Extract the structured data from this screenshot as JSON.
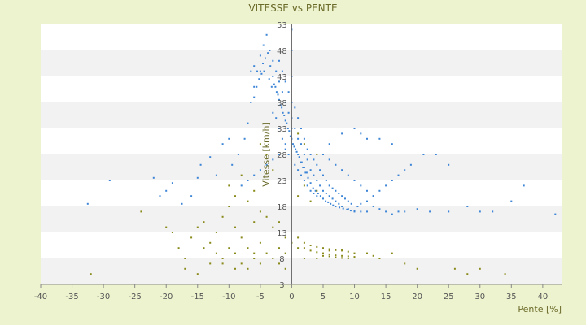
{
  "chart_data": {
    "type": "scatter",
    "title": "VITESSE vs PENTE",
    "xlabel": "Pente [%]",
    "ylabel": "Vitesse [km/h]",
    "xlim": [
      -40,
      43
    ],
    "ylim": [
      3,
      53
    ],
    "x_ticks": [
      "-40",
      "-35",
      "-30",
      "-25",
      "-20",
      "-15",
      "-10",
      "-5",
      "0",
      "5",
      "10",
      "15",
      "20",
      "25",
      "30",
      "35",
      "40"
    ],
    "y_ticks": [
      "3",
      "8",
      "13",
      "18",
      "23",
      "28",
      "33",
      "38",
      "43",
      "48",
      "53"
    ],
    "grid": true,
    "band_colors": [
      "#ffffff",
      "#f2f2f2"
    ],
    "series": [
      {
        "color": "#3d85d6",
        "points": [
          [
            -32.5,
            18.5
          ],
          [
            -29,
            23
          ],
          [
            -22,
            23.5
          ],
          [
            -21,
            20
          ],
          [
            -20,
            21
          ],
          [
            -19,
            22.5
          ],
          [
            -17.5,
            18.5
          ],
          [
            -16,
            20
          ],
          [
            -15,
            23.5
          ],
          [
            -14.5,
            26
          ],
          [
            -13,
            27.5
          ],
          [
            -12,
            24
          ],
          [
            -11,
            30
          ],
          [
            -10,
            31
          ],
          [
            -9.5,
            26
          ],
          [
            -8.5,
            28
          ],
          [
            -7.5,
            31
          ],
          [
            -7,
            34
          ],
          [
            -6.5,
            38
          ],
          [
            -6,
            41
          ],
          [
            -5.5,
            44
          ],
          [
            -5,
            47
          ],
          [
            -4.5,
            49
          ],
          [
            -4,
            51
          ],
          [
            -3.5,
            48
          ],
          [
            -3,
            46
          ],
          [
            -2.5,
            44
          ],
          [
            -2,
            42
          ],
          [
            -1.5,
            40
          ],
          [
            -1,
            38
          ],
          [
            -0.5,
            36
          ],
          [
            0,
            35
          ],
          [
            0.5,
            33
          ],
          [
            1,
            31
          ],
          [
            1.5,
            30
          ],
          [
            2,
            28
          ],
          [
            2.5,
            27
          ],
          [
            3,
            25
          ],
          [
            3.5,
            24
          ],
          [
            4,
            23
          ],
          [
            4.5,
            22
          ],
          [
            5,
            21
          ],
          [
            5.5,
            20.5
          ],
          [
            6,
            20
          ],
          [
            6.5,
            19.5
          ],
          [
            7,
            19
          ],
          [
            7.5,
            18.5
          ],
          [
            8,
            18
          ],
          [
            9,
            17.5
          ],
          [
            10,
            17
          ],
          [
            11,
            17
          ],
          [
            12,
            17
          ],
          [
            13,
            18
          ],
          [
            14,
            17.5
          ],
          [
            15,
            17
          ],
          [
            16,
            16.5
          ],
          [
            17,
            17
          ],
          [
            18,
            17
          ],
          [
            20,
            17.5
          ],
          [
            22,
            17
          ],
          [
            25,
            17
          ],
          [
            28,
            18
          ],
          [
            30,
            17
          ],
          [
            32,
            17
          ],
          [
            35,
            19
          ],
          [
            37,
            22
          ],
          [
            42,
            16.5
          ],
          [
            -5,
            44
          ],
          [
            -4.6,
            45.5
          ],
          [
            -4.2,
            46.5
          ],
          [
            -3.8,
            47.5
          ],
          [
            -3.4,
            45
          ],
          [
            -3,
            43
          ],
          [
            -2.6,
            41
          ],
          [
            -2.2,
            39.5
          ],
          [
            -1.8,
            37.5
          ],
          [
            -1.4,
            36
          ],
          [
            -1,
            34.5
          ],
          [
            -0.6,
            33
          ],
          [
            -0.2,
            31.5
          ],
          [
            0.2,
            30
          ],
          [
            0.6,
            29
          ],
          [
            1,
            28
          ],
          [
            1.4,
            26.5
          ],
          [
            1.8,
            25.5
          ],
          [
            2.2,
            24.5
          ],
          [
            2.6,
            23.5
          ],
          [
            3,
            22.5
          ],
          [
            3.4,
            21.5
          ],
          [
            3.8,
            21
          ],
          [
            4.2,
            20.5
          ],
          [
            4.6,
            20
          ],
          [
            5,
            19.5
          ],
          [
            5.4,
            19
          ],
          [
            5.8,
            18.8
          ],
          [
            6.2,
            18.5
          ],
          [
            6.6,
            18.2
          ],
          [
            7,
            18
          ],
          [
            7.6,
            17.8
          ],
          [
            8.2,
            17.6
          ],
          [
            8.8,
            17.4
          ],
          [
            9.4,
            17.2
          ],
          [
            10,
            17.1
          ],
          [
            -2.8,
            41.5
          ],
          [
            -2.4,
            40
          ],
          [
            -2,
            38.5
          ],
          [
            -1.6,
            37
          ],
          [
            -1.2,
            35.5
          ],
          [
            -0.8,
            34
          ],
          [
            -0.4,
            32.5
          ],
          [
            0,
            31
          ],
          [
            0.4,
            29.5
          ],
          [
            0.8,
            28.5
          ],
          [
            1.2,
            27.5
          ],
          [
            1.6,
            26.5
          ],
          [
            2,
            25.5
          ],
          [
            2.4,
            24.5
          ],
          [
            -6,
            39
          ],
          [
            -5.6,
            41
          ],
          [
            -5.2,
            42.5
          ],
          [
            -4.8,
            43.5
          ],
          [
            -4.4,
            44
          ],
          [
            -3.6,
            42.5
          ],
          [
            -3.2,
            41
          ],
          [
            -6.5,
            44
          ],
          [
            -6,
            45
          ],
          [
            -2,
            46
          ],
          [
            -1.5,
            44
          ],
          [
            -1,
            42
          ],
          [
            -0.5,
            40
          ],
          [
            0.5,
            37
          ],
          [
            1,
            35
          ],
          [
            1.5,
            33
          ],
          [
            2,
            31
          ],
          [
            2.5,
            29
          ],
          [
            3,
            28
          ],
          [
            3.5,
            27
          ],
          [
            4,
            26
          ],
          [
            4.5,
            25
          ],
          [
            5,
            24
          ],
          [
            5.5,
            23
          ],
          [
            6,
            22
          ],
          [
            6.5,
            21.5
          ],
          [
            7,
            21
          ],
          [
            7.5,
            20.5
          ],
          [
            8,
            20
          ],
          [
            8.5,
            19.5
          ],
          [
            9,
            19
          ],
          [
            9.5,
            18.5
          ],
          [
            10.5,
            18
          ],
          [
            11,
            18.5
          ],
          [
            12,
            19
          ],
          [
            13,
            20
          ],
          [
            14,
            21
          ],
          [
            15,
            22
          ],
          [
            16,
            23
          ],
          [
            17,
            24
          ],
          [
            18,
            25
          ],
          [
            -1,
            29
          ],
          [
            -0.5,
            28
          ],
          [
            0.5,
            26
          ],
          [
            1,
            25
          ],
          [
            1.5,
            24
          ],
          [
            2,
            23
          ],
          [
            2.5,
            22
          ],
          [
            3,
            21
          ],
          [
            3.5,
            20.5
          ],
          [
            4,
            20
          ],
          [
            -3,
            36
          ],
          [
            -2.5,
            35
          ],
          [
            -2,
            33
          ],
          [
            -1.5,
            31
          ],
          [
            -1,
            30
          ],
          [
            5,
            28
          ],
          [
            6,
            27
          ],
          [
            7,
            26
          ],
          [
            8,
            25
          ],
          [
            9,
            24
          ],
          [
            10,
            23
          ],
          [
            11,
            22
          ],
          [
            12,
            21
          ],
          [
            13,
            20
          ],
          [
            6,
            30
          ],
          [
            8,
            32
          ],
          [
            10,
            33
          ],
          [
            11,
            32
          ],
          [
            12,
            31
          ],
          [
            14,
            31
          ],
          [
            16,
            30
          ],
          [
            19,
            26
          ],
          [
            21,
            28
          ],
          [
            23,
            28
          ],
          [
            25,
            26
          ],
          [
            -8,
            22
          ],
          [
            -7,
            23
          ],
          [
            -6,
            24
          ],
          [
            -5,
            25
          ],
          [
            -4,
            26
          ],
          [
            -3,
            27
          ],
          [
            -2,
            28
          ],
          [
            0,
            33
          ],
          [
            0,
            38
          ],
          [
            0,
            43
          ],
          [
            0,
            48
          ],
          [
            0,
            52
          ]
        ]
      },
      {
        "color": "#8a8a1a",
        "points": [
          [
            -32,
            5
          ],
          [
            -24,
            17
          ],
          [
            -20,
            14
          ],
          [
            -19,
            13
          ],
          [
            -18,
            10
          ],
          [
            -17,
            8
          ],
          [
            -16,
            12
          ],
          [
            -15,
            14
          ],
          [
            -14,
            15
          ],
          [
            -13,
            11
          ],
          [
            -12,
            13
          ],
          [
            -11,
            16
          ],
          [
            -10,
            18
          ],
          [
            -9,
            14
          ],
          [
            -8,
            12
          ],
          [
            -7,
            10
          ],
          [
            -6,
            9
          ],
          [
            -5,
            11
          ],
          [
            -4,
            9
          ],
          [
            -3,
            8
          ],
          [
            -2,
            10
          ],
          [
            -1,
            9
          ],
          [
            -17,
            6
          ],
          [
            -15,
            5
          ],
          [
            -13,
            7
          ],
          [
            -11,
            8
          ],
          [
            -10,
            10
          ],
          [
            -9,
            9
          ],
          [
            -8,
            7
          ],
          [
            -7,
            6
          ],
          [
            -6,
            8
          ],
          [
            -5,
            7
          ],
          [
            -10,
            22
          ],
          [
            -9,
            20
          ],
          [
            -8,
            24
          ],
          [
            -7,
            19
          ],
          [
            -6,
            21
          ],
          [
            -5,
            30
          ],
          [
            -4,
            28
          ],
          [
            -3,
            25
          ],
          [
            -6,
            15
          ],
          [
            -5,
            17
          ],
          [
            -4,
            16
          ],
          [
            -3,
            14
          ],
          [
            -2,
            15
          ],
          [
            -1,
            12
          ],
          [
            0,
            11
          ],
          [
            1,
            10
          ],
          [
            2,
            10
          ],
          [
            3,
            9.5
          ],
          [
            4,
            9.2
          ],
          [
            5,
            9
          ],
          [
            6,
            8.8
          ],
          [
            7,
            8.6
          ],
          [
            8,
            8.5
          ],
          [
            9,
            8.4
          ],
          [
            10,
            8.3
          ],
          [
            3,
            10.5
          ],
          [
            4,
            10.2
          ],
          [
            5,
            10
          ],
          [
            6,
            9.8
          ],
          [
            7,
            9.6
          ],
          [
            8,
            9.5
          ],
          [
            9,
            9.3
          ],
          [
            5,
            8.5
          ],
          [
            6,
            8.4
          ],
          [
            7,
            8.2
          ],
          [
            8,
            8.1
          ],
          [
            9,
            8
          ],
          [
            2,
            11
          ],
          [
            1,
            12
          ],
          [
            14,
            8
          ],
          [
            16,
            9
          ],
          [
            18,
            7
          ],
          [
            20,
            6
          ],
          [
            26,
            6
          ],
          [
            28,
            5
          ],
          [
            30,
            6
          ],
          [
            34,
            5
          ],
          [
            12,
            9
          ],
          [
            13,
            8.5
          ],
          [
            -14,
            10
          ],
          [
            -12,
            9
          ],
          [
            -11,
            7
          ],
          [
            -9,
            6
          ],
          [
            -2,
            7
          ],
          [
            -1,
            6
          ],
          [
            2,
            8
          ],
          [
            4,
            8
          ],
          [
            6,
            9.5
          ],
          [
            8,
            9.7
          ],
          [
            10,
            9
          ],
          [
            1,
            20
          ],
          [
            2,
            22
          ],
          [
            3,
            19
          ],
          [
            4,
            21
          ],
          [
            1,
            32
          ],
          [
            2,
            30
          ],
          [
            4,
            28
          ]
        ]
      }
    ]
  }
}
